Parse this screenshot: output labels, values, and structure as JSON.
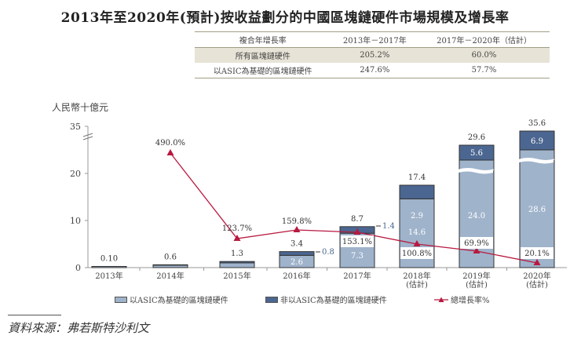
{
  "title": "2013年至2020年(預計)按收益劃分的中國區塊鏈硬件市場規模及增長率",
  "cagr_table": {
    "headers": [
      "複合年增長率",
      "2013年－2017年",
      "2017年－2020年（估計）"
    ],
    "rows": [
      [
        "所有區塊鏈硬件",
        "205.2%",
        "60.0%"
      ],
      [
        "以ASIC為基礎的區塊鏈硬件",
        "247.6%",
        "57.7%"
      ]
    ]
  },
  "colors": {
    "asic": "#9fb3cb",
    "non_asic": "#4b6690",
    "growth": "#b8193f",
    "bar_border": "#333333"
  },
  "chart_data": {
    "type": "bar",
    "stacked": true,
    "title": "2013年至2020年(預計)按收益劃分的中國區塊鏈硬件市場規模及增長率",
    "ylabel": "人民幣十億元",
    "ylim": [
      0,
      35
    ],
    "y_axis_break": true,
    "yticks": [
      "0",
      "10",
      "20",
      "35"
    ],
    "categories": [
      "2013年",
      "2014年",
      "2015年",
      "2016年",
      "2017年",
      "2018年\n(估計)",
      "2019年\n(估計)",
      "2020年\n(估計)"
    ],
    "category_lines": [
      [
        "2013年"
      ],
      [
        "2014年"
      ],
      [
        "2015年"
      ],
      [
        "2016年"
      ],
      [
        "2017年"
      ],
      [
        "2018年",
        "(估計)"
      ],
      [
        "2019年",
        "(估計)"
      ],
      [
        "2020年",
        "(估計)"
      ]
    ],
    "series": [
      {
        "name": "以ASIC為基礎的區塊鏈硬件",
        "values": [
          0.1,
          0.5,
          1.0,
          2.6,
          7.3,
          14.6,
          24.0,
          28.6
        ],
        "labels": [
          "",
          "",
          "",
          "2.6",
          "7.3",
          "14.6",
          "24.0",
          "28.6"
        ]
      },
      {
        "name": "非以ASIC為基礎的區塊鏈硬件",
        "values": [
          0.0,
          0.1,
          0.3,
          0.8,
          1.4,
          2.9,
          5.6,
          6.9
        ],
        "labels": [
          "",
          "",
          "",
          "0.8",
          "1.4",
          "2.9",
          "5.6",
          "6.9"
        ]
      }
    ],
    "totals": [
      "0.10",
      "0.6",
      "1.3",
      "3.4",
      "8.7",
      "17.4",
      "29.6",
      "35.6"
    ],
    "growth_line": {
      "name": "總增長率%",
      "values": [
        null,
        490.0,
        123.7,
        159.8,
        153.1,
        100.8,
        69.9,
        20.1
      ],
      "labels": [
        "",
        "490.0%",
        "123.7%",
        "159.8%",
        "153.1%",
        "100.8%",
        "69.9%",
        "20.1%"
      ]
    },
    "legend": [
      "以ASIC為基礎的區塊鏈硬件",
      "非以ASIC為基礎的區塊鏈硬件",
      "總增長率%"
    ],
    "legend_position": "bottom"
  },
  "source": "資料來源：弗若斯特沙利文"
}
